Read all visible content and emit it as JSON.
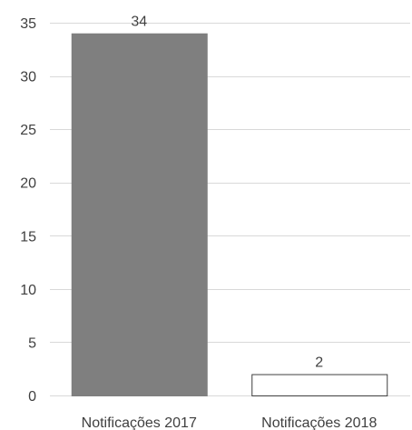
{
  "chart_data": {
    "type": "bar",
    "title": "",
    "xlabel": "",
    "ylabel": "",
    "categories": [
      "Notificações 2017",
      "Notificações 2018"
    ],
    "values": [
      34,
      2
    ],
    "data_labels": [
      "34",
      "2"
    ],
    "ylim": [
      0,
      35
    ],
    "yticks": [
      0,
      5,
      10,
      15,
      20,
      25,
      30,
      35
    ],
    "ytick_labels": [
      "0",
      "5",
      "10",
      "15",
      "20",
      "25",
      "30",
      "35"
    ],
    "grid": true,
    "legend": "none",
    "colors": {
      "bar_fill": [
        "#7f7f7f",
        "#ffffff"
      ],
      "bar_stroke": [
        "#7f7f7f",
        "#3f3f3f"
      ],
      "grid": "#d9d9d9",
      "text": "#3f3f3f"
    }
  }
}
